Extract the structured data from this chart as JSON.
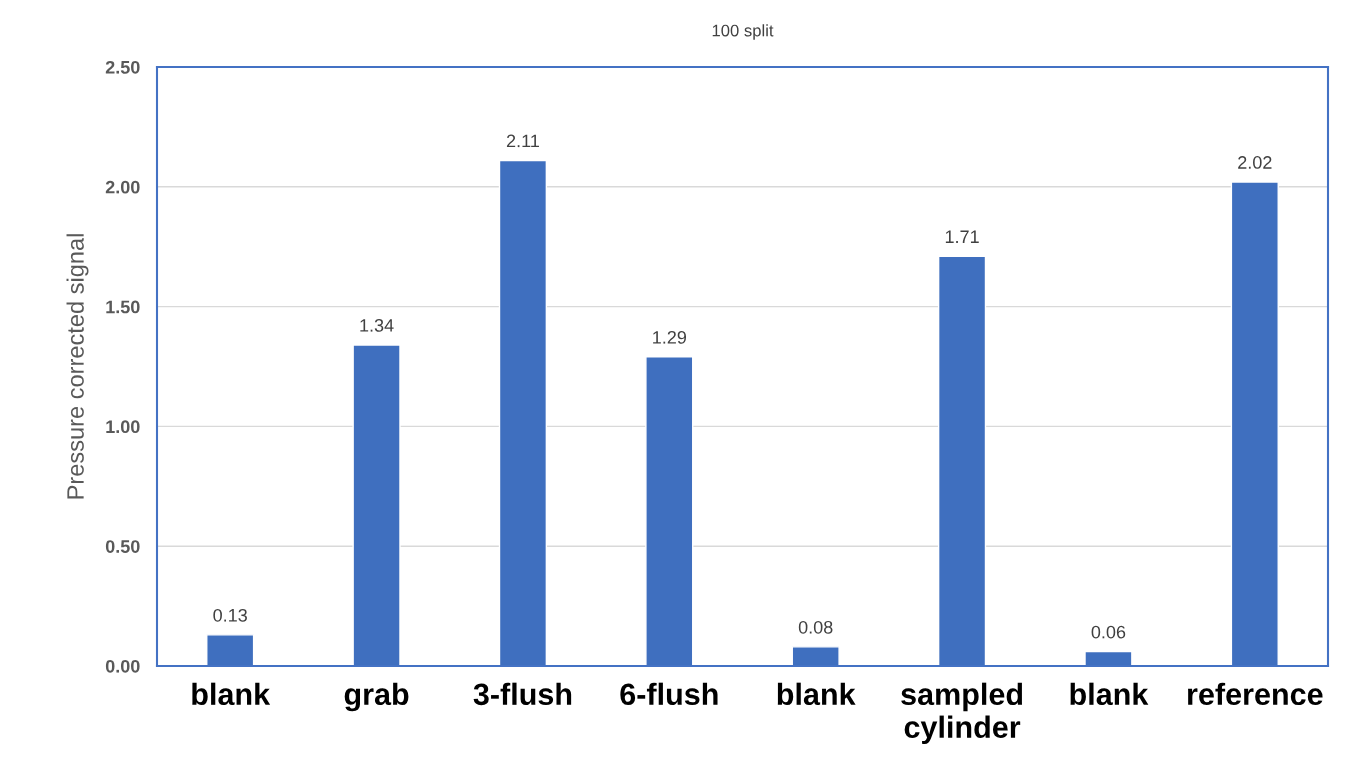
{
  "chart_data": {
    "type": "bar",
    "title": "100 split",
    "ylabel": "Pressure corrected signal",
    "categories": [
      "blank",
      "grab",
      "3-flush",
      "6-flush",
      "blank",
      "sampled\ncylinder",
      "blank",
      "reference"
    ],
    "values": [
      0.13,
      1.34,
      2.11,
      1.29,
      0.08,
      1.71,
      0.06,
      2.02
    ],
    "color": "#3f6fbf",
    "ylim": [
      0,
      2.5
    ],
    "yticks": [
      {
        "value": 0,
        "label": "0.00"
      },
      {
        "value": 0.5,
        "label": "0.50"
      },
      {
        "value": 1,
        "label": "1.00"
      },
      {
        "value": 1.5,
        "label": "1.50"
      },
      {
        "value": 2,
        "label": "2.00"
      },
      {
        "value": 2.5,
        "label": "2.50"
      }
    ],
    "grid": "y",
    "data_labels": true,
    "legend": false
  }
}
